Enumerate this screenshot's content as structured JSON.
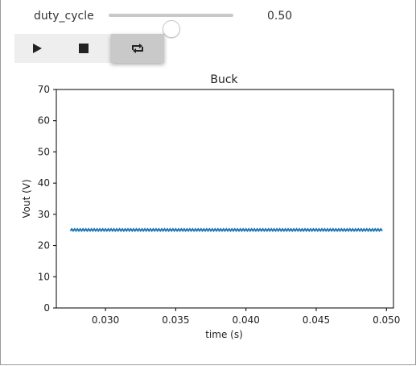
{
  "widget": {
    "slider": {
      "label": "duty_cycle",
      "value": "0.50",
      "fraction": 0.5
    },
    "buttons": {
      "play": "play-icon",
      "stop": "stop-icon",
      "loop": "loop-icon"
    },
    "loop_active": true
  },
  "chart_data": {
    "type": "line",
    "title": "Buck",
    "xlabel": "time (s)",
    "ylabel": "Vout (V)",
    "xlim": [
      0.0265,
      0.0505
    ],
    "ylim": [
      0,
      70
    ],
    "xticks": [
      "0.030",
      "0.035",
      "0.040",
      "0.045",
      "0.050"
    ],
    "yticks": [
      "0",
      "10",
      "20",
      "30",
      "40",
      "50",
      "60",
      "70"
    ],
    "grid": false,
    "series": [
      {
        "color": "#1f77b4",
        "x_start": 0.0275,
        "x_end": 0.0497,
        "mean": 25.0,
        "ripple_amplitude": 0.3,
        "ripple_period": 0.0002
      }
    ]
  },
  "colors": {
    "series": "#1f77b4",
    "control_active": "#c9c9c9",
    "control_bg": "#eeeeee"
  }
}
